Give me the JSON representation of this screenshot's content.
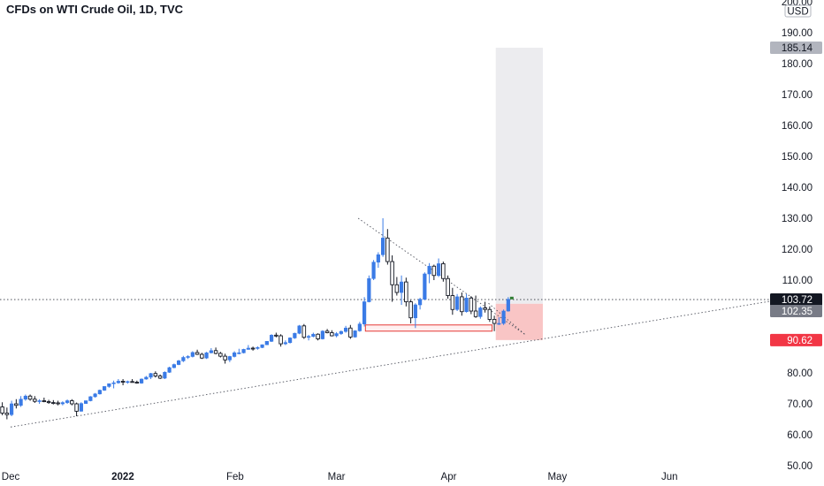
{
  "header": {
    "title": "CFDs on WTI Crude Oil, 1D, TVC"
  },
  "axis": {
    "currency": "USD"
  },
  "colors": {
    "up": "#3a7be6",
    "down": "#131722",
    "target_zone": "#ececef",
    "stop_zone": "#f9c5c5",
    "support_box": "#e53935",
    "price_tag": "#131722",
    "tag_102": "#787b86",
    "tag_90": "#f23645",
    "tag_185": "#b2b5be"
  },
  "chart_data": {
    "type": "candlestick",
    "title": "CFDs on WTI Crude Oil, 1D, TVC",
    "ylim": [
      50,
      200
    ],
    "y_ticks": [
      "200.00",
      "190.00",
      "180.00",
      "170.00",
      "160.00",
      "150.00",
      "140.00",
      "130.00",
      "120.00",
      "110.00",
      "100.00",
      "90.00",
      "80.00",
      "70.00",
      "60.00",
      "50.00"
    ],
    "x_ticks": [
      {
        "label": "Dec",
        "bold": false
      },
      {
        "label": "2022",
        "bold": true
      },
      {
        "label": "Feb",
        "bold": false
      },
      {
        "label": "Mar",
        "bold": false
      },
      {
        "label": "Apr",
        "bold": false
      },
      {
        "label": "May",
        "bold": false
      },
      {
        "label": "Jun",
        "bold": false
      }
    ],
    "price_tags": [
      {
        "value": "185.14",
        "kind": "target"
      },
      {
        "value": "103.72",
        "kind": "last"
      },
      {
        "value": "102.35",
        "kind": "entry"
      },
      {
        "value": "90.62",
        "kind": "stop"
      }
    ],
    "ohlc": [
      [
        69.0,
        70.5,
        66.3,
        67.0
      ],
      [
        67.0,
        68.8,
        65.0,
        66.5
      ],
      [
        66.5,
        71.0,
        66.0,
        70.0
      ],
      [
        70.0,
        71.5,
        68.5,
        69.5
      ],
      [
        69.5,
        72.5,
        69.0,
        71.5
      ],
      [
        71.5,
        73.0,
        71.0,
        72.5
      ],
      [
        72.5,
        73.0,
        71.0,
        71.5
      ],
      [
        71.5,
        72.5,
        70.3,
        70.8
      ],
      [
        70.8,
        71.5,
        70.0,
        71.0
      ],
      [
        71.0,
        72.0,
        70.5,
        70.7
      ],
      [
        70.7,
        71.3,
        70.0,
        70.4
      ],
      [
        70.4,
        71.2,
        69.8,
        70.3
      ],
      [
        70.3,
        71.0,
        69.5,
        70.0
      ],
      [
        70.0,
        70.8,
        69.5,
        70.4
      ],
      [
        70.4,
        71.4,
        70.0,
        71.0
      ],
      [
        71.0,
        71.5,
        69.5,
        70.0
      ],
      [
        70.0,
        70.4,
        66.0,
        67.6
      ],
      [
        67.6,
        70.5,
        67.5,
        70.1
      ],
      [
        70.1,
        71.0,
        70.0,
        71.0
      ],
      [
        71.0,
        72.5,
        70.8,
        72.3
      ],
      [
        72.3,
        73.5,
        72.0,
        73.2
      ],
      [
        73.2,
        74.6,
        73.0,
        74.4
      ],
      [
        74.4,
        75.6,
        74.2,
        75.6
      ],
      [
        75.6,
        76.5,
        75.2,
        76.5
      ],
      [
        76.5,
        77.5,
        75.0,
        76.8
      ],
      [
        76.8,
        78.0,
        76.5,
        77.3
      ],
      [
        77.3,
        78.0,
        76.0,
        77.0
      ],
      [
        77.0,
        77.5,
        76.5,
        77.2
      ],
      [
        77.2,
        78.0,
        77.0,
        77.0
      ],
      [
        77.0,
        77.5,
        76.5,
        76.7
      ],
      [
        76.7,
        78.2,
        76.5,
        78.0
      ],
      [
        78.0,
        79.0,
        77.8,
        78.6
      ],
      [
        78.6,
        80.0,
        78.0,
        79.8
      ],
      [
        79.8,
        80.5,
        78.5,
        79.0
      ],
      [
        79.0,
        79.5,
        78.0,
        78.3
      ],
      [
        78.3,
        80.5,
        78.0,
        80.2
      ],
      [
        80.2,
        82.0,
        80.0,
        81.7
      ],
      [
        81.7,
        83.0,
        81.5,
        82.7
      ],
      [
        82.7,
        84.2,
        82.5,
        83.9
      ],
      [
        83.9,
        85.5,
        83.5,
        85.0
      ],
      [
        85.0,
        85.7,
        84.5,
        85.3
      ],
      [
        85.3,
        87.0,
        85.0,
        86.6
      ],
      [
        86.6,
        87.5,
        85.8,
        86.0
      ],
      [
        86.0,
        86.5,
        84.5,
        84.8
      ],
      [
        84.8,
        86.8,
        84.5,
        86.5
      ],
      [
        86.5,
        88.0,
        86.3,
        87.2
      ],
      [
        87.2,
        88.2,
        86.0,
        86.3
      ],
      [
        86.3,
        86.8,
        85.0,
        85.4
      ],
      [
        85.4,
        86.2,
        83.0,
        84.2
      ],
      [
        84.2,
        85.5,
        83.5,
        85.3
      ],
      [
        85.3,
        87.0,
        85.0,
        86.5
      ],
      [
        86.5,
        87.8,
        86.0,
        86.5
      ],
      [
        86.5,
        87.8,
        86.3,
        87.6
      ],
      [
        87.6,
        89.0,
        87.5,
        88.0
      ],
      [
        88.0,
        88.5,
        87.2,
        87.9
      ],
      [
        87.9,
        88.6,
        87.5,
        88.2
      ],
      [
        88.2,
        89.2,
        88.0,
        89.1
      ],
      [
        89.1,
        90.3,
        89.0,
        90.2
      ],
      [
        90.2,
        92.5,
        90.0,
        92.2
      ],
      [
        92.2,
        93.0,
        91.5,
        92.0
      ],
      [
        92.0,
        92.5,
        88.5,
        89.4
      ],
      [
        89.4,
        90.5,
        89.0,
        89.8
      ],
      [
        89.8,
        91.5,
        89.5,
        91.3
      ],
      [
        91.3,
        93.0,
        91.0,
        92.8
      ],
      [
        92.8,
        95.5,
        92.5,
        95.2
      ],
      [
        95.2,
        95.8,
        91.0,
        91.5
      ],
      [
        91.5,
        92.3,
        90.5,
        91.8
      ],
      [
        91.8,
        93.0,
        91.5,
        92.5
      ],
      [
        92.5,
        92.8,
        90.5,
        91.0
      ],
      [
        91.0,
        93.8,
        90.8,
        93.5
      ],
      [
        93.5,
        94.2,
        92.8,
        93.0
      ],
      [
        93.0,
        93.8,
        91.8,
        92.0
      ],
      [
        92.0,
        93.2,
        91.5,
        92.7
      ],
      [
        92.7,
        93.7,
        92.3,
        93.4
      ],
      [
        93.4,
        95.2,
        93.0,
        94.5
      ],
      [
        94.5,
        95.5,
        91.0,
        91.6
      ],
      [
        91.6,
        93.8,
        91.4,
        93.6
      ],
      [
        93.6,
        96.5,
        93.3,
        95.8
      ],
      [
        95.8,
        104.5,
        95.0,
        103.0
      ],
      [
        103.0,
        111.5,
        102.8,
        110.5
      ],
      [
        110.5,
        116.5,
        110.0,
        115.8
      ],
      [
        115.8,
        119.0,
        114.0,
        118.2
      ],
      [
        118.2,
        130.0,
        117.5,
        123.6
      ],
      [
        123.6,
        126.5,
        115.0,
        116.0
      ],
      [
        116.0,
        118.0,
        103.0,
        108.5
      ],
      [
        108.5,
        111.0,
        105.0,
        106.0
      ],
      [
        106.0,
        111.5,
        102.0,
        109.4
      ],
      [
        109.4,
        110.8,
        101.5,
        103.0
      ],
      [
        103.0,
        103.5,
        96.0,
        97.8
      ],
      [
        97.8,
        102.5,
        94.5,
        102.0
      ],
      [
        102.0,
        104.3,
        100.5,
        103.8
      ],
      [
        103.8,
        112.5,
        103.5,
        112.0
      ],
      [
        112.0,
        115.5,
        109.0,
        114.5
      ],
      [
        114.5,
        115.0,
        110.0,
        111.5
      ],
      [
        111.5,
        117.0,
        111.0,
        115.3
      ],
      [
        115.3,
        116.0,
        109.5,
        110.5
      ],
      [
        110.5,
        111.5,
        104.0,
        105.0
      ],
      [
        105.0,
        107.5,
        98.8,
        100.5
      ],
      [
        100.5,
        105.5,
        100.0,
        104.6
      ],
      [
        104.6,
        106.0,
        98.5,
        99.8
      ],
      [
        99.8,
        105.5,
        99.5,
        104.2
      ],
      [
        104.2,
        104.8,
        99.0,
        100.0
      ],
      [
        100.0,
        105.0,
        97.8,
        98.2
      ],
      [
        98.2,
        101.5,
        97.5,
        101.0
      ],
      [
        101.0,
        103.0,
        99.5,
        100.5
      ],
      [
        100.5,
        101.5,
        96.5,
        97.3
      ],
      [
        97.3,
        98.5,
        93.5,
        96.0
      ],
      [
        96.0,
        98.0,
        95.5,
        96.0
      ],
      [
        96.0,
        100.5,
        95.5,
        100.0
      ],
      [
        100.0,
        104.5,
        99.8,
        103.8
      ]
    ],
    "trendlines": [
      {
        "name": "rising-support",
        "from": [
          "2021-12-01",
          62.5
        ],
        "to": [
          "2022-06-30",
          103.4
        ]
      },
      {
        "name": "falling-resistance",
        "from": [
          "2022-03-07",
          130.0
        ],
        "to": [
          "2022-04-22",
          92.5
        ]
      }
    ],
    "target_zone": {
      "from": 102.35,
      "to": 185.14
    },
    "stop_zone": {
      "from": 102.35,
      "to": 90.62
    },
    "support_box": {
      "from": 93.5,
      "to": 95.5
    },
    "last_price": 103.72
  }
}
